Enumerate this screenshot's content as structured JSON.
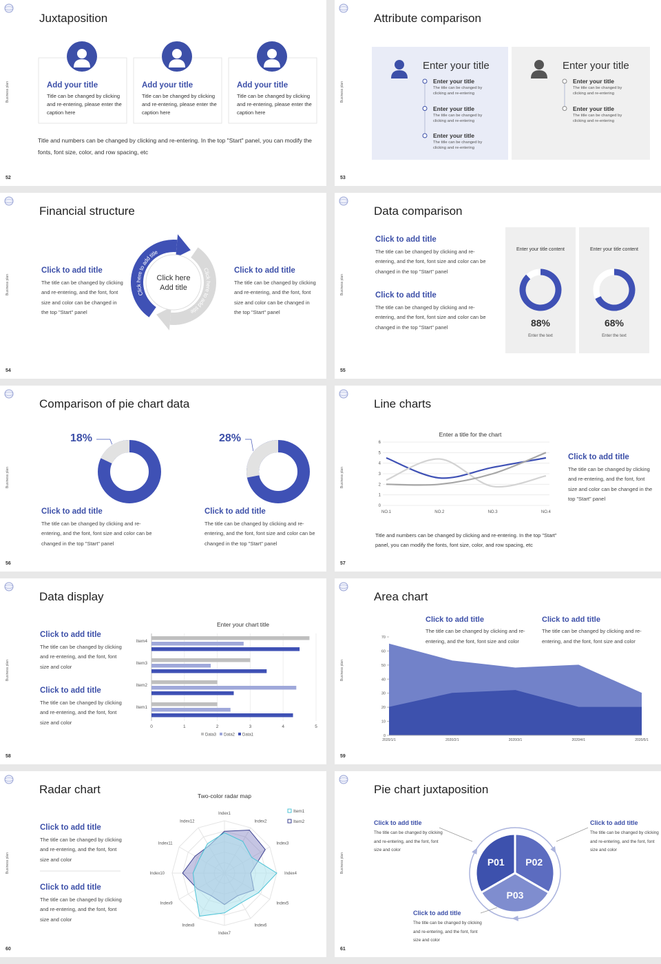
{
  "slides": [
    {
      "page": 52,
      "side_label": "Business plan",
      "title": "Juxtaposition",
      "cards": [
        {
          "title": "Add your title",
          "text": "Title can be changed by clicking and re-entering, please enter the caption here"
        },
        {
          "title": "Add your title",
          "text": "Title can be changed by clicking and re-entering, please enter the caption here"
        },
        {
          "title": "Add your title",
          "text": "Title can be changed by clicking and re-entering, please enter the caption here"
        }
      ],
      "note": "Title and numbers can be changed by clicking and re-entering. In the top \"Start\" panel, you can modify the fonts, font size, color, and row spacing, etc"
    },
    {
      "page": 53,
      "side_label": "Business plan",
      "title": "Attribute comparison",
      "panels": [
        {
          "title": "Enter your title",
          "items": [
            {
              "title": "Enter your title",
              "text": "The title can be changed by clicking and re-entering"
            },
            {
              "title": "Enter your title",
              "text": "The title can be changed by clicking and re-entering"
            },
            {
              "title": "Enter your title",
              "text": "The title can be changed by clicking and re-entering"
            }
          ]
        },
        {
          "title": "Enter your title",
          "items": [
            {
              "title": "Enter your title",
              "text": "The title can be changed by clicking and re-entering"
            },
            {
              "title": "Enter your title",
              "text": "The title can be changed by clicking and re-entering"
            }
          ]
        }
      ]
    },
    {
      "page": 54,
      "side_label": "Business plan",
      "title": "Financial structure",
      "blocks": [
        {
          "title": "Click to add title",
          "text": "The title can be changed by clicking and re-entering, and the font, font size and color can be changed in the top \"Start\" panel"
        },
        {
          "title": "Click to add title",
          "text": "The title can be changed by clicking and re-entering, and the font, font size and color can be changed in the top \"Start\" panel"
        }
      ],
      "center": [
        "Click here",
        "Add title"
      ],
      "arc_labels": [
        "Click here to add title",
        "Click here to add title"
      ]
    },
    {
      "page": 55,
      "side_label": "Business plan",
      "title": "Data comparison",
      "blocks": [
        {
          "title": "Click to add title",
          "text": "The title can be changed by clicking and re-entering, and the font, font size and color can be changed in the top \"Start\" panel"
        },
        {
          "title": "Click to add title",
          "text": "The title can be changed by clicking and re-entering, and the font, font size and color can be changed in the top \"Start\" panel"
        }
      ],
      "chart_data": [
        {
          "type": "donut",
          "title": "Enter your title content",
          "values": [
            88
          ],
          "value_labels": [
            "88%"
          ],
          "caption": "Enter the text",
          "color": "#3f51b5"
        },
        {
          "type": "donut",
          "title": "Enter your title content",
          "values": [
            68
          ],
          "value_labels": [
            "68%"
          ],
          "caption": "Enter the text",
          "color": "#3f51b5"
        }
      ]
    },
    {
      "page": 56,
      "side_label": "Business plan",
      "title": "Comparison of pie chart data",
      "blocks": [
        {
          "title": "Click to add title",
          "text": "The title can be changed by clicking and re-entering, and the font, font size and color can be changed in the top \"Start\" panel"
        },
        {
          "title": "Click to add title",
          "text": "The title can be changed by clicking and re-entering, and the font, font size and color can be changed in the top \"Start\" panel"
        }
      ],
      "chart_data": [
        {
          "type": "donut",
          "values": [
            18
          ],
          "value_labels": [
            "18%"
          ],
          "color": "#e2e2e2",
          "ring_color": "#3f51b5"
        },
        {
          "type": "donut",
          "values": [
            28
          ],
          "value_labels": [
            "28%"
          ],
          "color": "#e2e2e2",
          "ring_color": "#3f51b5"
        }
      ]
    },
    {
      "page": 57,
      "side_label": "Business plan",
      "title": "Line charts",
      "chart_data": {
        "type": "line",
        "title": "Enter a title for the chart",
        "categories": [
          "NO.1",
          "NO.2",
          "NO.3",
          "NO.4"
        ],
        "series": [
          {
            "color": "#3f51b5",
            "values": [
              4.5,
              2.6,
              3.6,
              4.5
            ]
          },
          {
            "color": "#d3d3d3",
            "values": [
              2.4,
              4.4,
              1.8,
              2.8
            ]
          },
          {
            "color": "#a6a6a6",
            "values": [
              2,
              2,
              3,
              5
            ]
          }
        ],
        "ylim": [
          0,
          6
        ],
        "yticks": [
          0,
          1,
          2,
          3,
          4,
          5,
          6
        ],
        "grid": true
      },
      "blocks": [
        {
          "title": "Click to add title",
          "text": "The title can be changed by clicking and re-entering, and the font, font size and color can be changed in the top \"Start\" panel"
        }
      ],
      "note": "Title and numbers can be changed by clicking and re-entering. In the top \"Start\" panel, you can modify the fonts, font size, color, and row spacing, etc"
    },
    {
      "page": 58,
      "side_label": "Business plan",
      "title": "Data display",
      "blocks": [
        {
          "title": "Click to add title",
          "text": "The title can be changed by clicking and re-entering, and the font, font size and color"
        },
        {
          "title": "Click to add title",
          "text": "The title can be changed by clicking and re-entering, and the font, font size and color"
        }
      ],
      "chart_data": {
        "type": "barh",
        "title": "Enter your chart title",
        "categories": [
          "Item1",
          "Item2",
          "Item3",
          "Item4"
        ],
        "series": [
          {
            "name": "Data3",
            "color": "#bfbfbf",
            "values": [
              2,
              2,
              3,
              4.8
            ]
          },
          {
            "name": "Data2",
            "color": "#9fa8da",
            "values": [
              2.4,
              4.4,
              1.8,
              2.8
            ]
          },
          {
            "name": "Data1",
            "color": "#3f51b5",
            "values": [
              4.3,
              2.5,
              3.5,
              4.5
            ]
          }
        ],
        "xlim": [
          0,
          5
        ],
        "xticks": [
          0,
          1,
          2,
          3,
          4,
          5
        ],
        "legend": "bottom"
      }
    },
    {
      "page": 59,
      "side_label": "Business plan",
      "title": "Area chart",
      "blocks": [
        {
          "title": "Click to add title",
          "text": "The title can be changed by clicking and re-entering, and the font, font size and color"
        },
        {
          "title": "Click to add title",
          "text": "The title can be changed by clicking and re-entering, and the font, font size and color"
        }
      ],
      "chart_data": {
        "type": "area",
        "x": [
          "2020/1/1",
          "2020/2/1",
          "2020/3/1",
          "2020/4/1",
          "2020/5/1"
        ],
        "series": [
          {
            "color": "#7282c9",
            "values": [
              65,
              53,
              48,
              50,
              30
            ]
          },
          {
            "color": "#3d51ad",
            "values": [
              20,
              30,
              32,
              20,
              20
            ]
          }
        ],
        "ylim": [
          0,
          70
        ],
        "yticks": [
          0,
          10,
          20,
          30,
          40,
          50,
          60,
          70
        ]
      }
    },
    {
      "page": 60,
      "side_label": "Business plan",
      "title": "Radar chart",
      "blocks": [
        {
          "title": "Click to add title",
          "text": "The title can be changed by clicking and re-entering, and the font, font size and color"
        },
        {
          "title": "Click to add title",
          "text": "The title can be changed by clicking and re-entering, and the font, font size and color"
        }
      ],
      "chart_data": {
        "type": "radar",
        "title": "Two-color radar map",
        "categories": [
          "Index1",
          "Index2",
          "Index3",
          "Index4",
          "Index5",
          "Index6",
          "Index7",
          "Index8",
          "Index9",
          "Index10",
          "Index11",
          "Index12"
        ],
        "series": [
          {
            "name": "Item1",
            "color": "#4dc3d6",
            "values": [
              7.7,
              7,
              6,
              10,
              7.5,
              6.5,
              7.6,
              9.5,
              6.5,
              6,
              5.5,
              6.5
            ]
          },
          {
            "name": "Item2",
            "color": "#3a3f8f",
            "values": [
              8,
              9.5,
              9,
              5,
              6.5,
              5,
              6,
              5,
              6,
              8,
              6.5,
              6
            ]
          }
        ],
        "rlim": [
          0,
          10
        ],
        "legend": "top-right"
      }
    },
    {
      "page": 61,
      "side_label": "Business plan",
      "title": "Pie chart juxtaposition",
      "blocks": [
        {
          "title": "Click to add title",
          "text": "The title can be changed by clicking and re-entering, and the font, font size and color"
        },
        {
          "title": "Click to add title",
          "text": "The title can be changed by clicking and re-entering, and the font, font size and color"
        },
        {
          "title": "Click to add title",
          "text": "The title can be changed by clicking and re-entering, and the font, font size and color"
        }
      ],
      "segments": [
        "P01",
        "P02",
        "P03"
      ]
    }
  ]
}
